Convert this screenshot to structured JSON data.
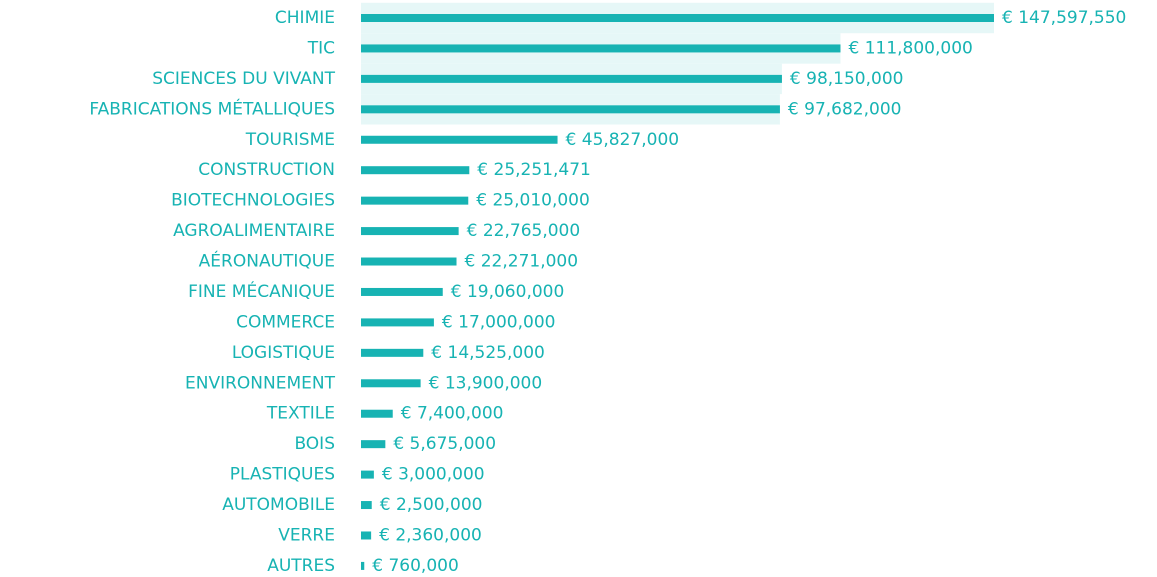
{
  "chart_data": {
    "type": "hbar",
    "color": "#17b3b3",
    "categories": [
      "CHIMIE",
      "TIC",
      "SCIENCES DU VIVANT",
      "FABRICATIONS MÉTALLIQUES",
      "TOURISME",
      "CONSTRUCTION",
      "BIOTECHNOLOGIES",
      "AGROALIMENTAIRE",
      "AÉRONAUTIQUE",
      "FINE MÉCANIQUE",
      "COMMERCE",
      "LOGISTIQUE",
      "ENVIRONNEMENT",
      "TEXTILE",
      "BOIS",
      "PLASTIQUES",
      "AUTOMOBILE",
      "VERRE",
      "AUTRES"
    ],
    "values": [
      147597550,
      111800000,
      98150000,
      97682000,
      45827000,
      25251471,
      25010000,
      22765000,
      22271000,
      19060000,
      17000000,
      14525000,
      13900000,
      7400000,
      5675000,
      3000000,
      2500000,
      2360000,
      760000
    ],
    "value_labels": [
      "€ 147,597,550",
      "€ 111,800,000",
      "€ 98,150,000",
      "€ 97,682,000",
      "€ 45,827,000",
      "€ 25,251,471",
      "€ 25,010,000",
      "€ 22,765,000",
      "€ 22,271,000",
      "€ 19,060,000",
      "€ 17,000,000",
      "€ 14,525,000",
      "€ 13,900,000",
      "€ 7,400,000",
      "€ 5,675,000",
      "€ 3,000,000",
      "€ 2,500,000",
      "€ 2,360,000",
      "€ 760,000"
    ]
  }
}
